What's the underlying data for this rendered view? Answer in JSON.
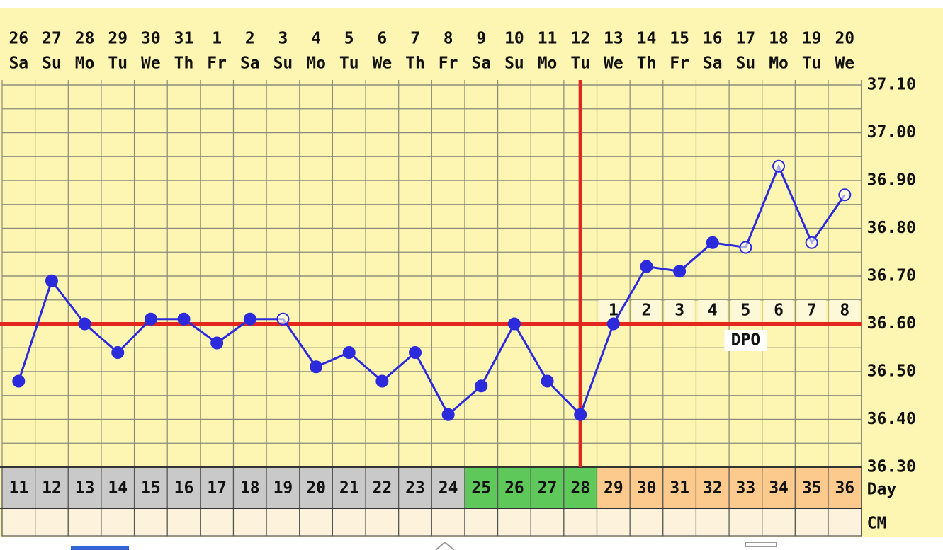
{
  "chart_data": {
    "type": "line",
    "categories": [
      "26",
      "27",
      "28",
      "29",
      "30",
      "31",
      "1",
      "2",
      "3",
      "4",
      "5",
      "6",
      "7",
      "8",
      "9",
      "10",
      "11",
      "12",
      "13",
      "14",
      "15",
      "16",
      "17",
      "18",
      "19",
      "20"
    ],
    "weekdays": [
      "Sa",
      "Su",
      "Mo",
      "Tu",
      "We",
      "Th",
      "Fr",
      "Sa",
      "Su",
      "Mo",
      "Tu",
      "We",
      "Th",
      "Fr",
      "Sa",
      "Su",
      "Mo",
      "Tu",
      "We",
      "Th",
      "Fr",
      "Sa",
      "Su",
      "Mo",
      "Tu",
      "We"
    ],
    "series": [
      {
        "color": "#2b2bdc",
        "values": [
          36.48,
          36.69,
          36.6,
          36.54,
          36.61,
          36.61,
          36.56,
          36.61,
          36.61,
          36.51,
          36.54,
          36.48,
          36.54,
          36.41,
          36.47,
          36.6,
          36.48,
          36.41,
          36.6,
          36.72,
          36.71,
          36.77,
          36.76,
          36.93,
          36.77,
          36.87
        ],
        "markers": [
          "filled",
          "filled",
          "filled",
          "filled",
          "filled",
          "filled",
          "filled",
          "filled",
          "open",
          "filled",
          "filled",
          "filled",
          "filled",
          "filled",
          "filled",
          "filled",
          "filled",
          "filled",
          "filled",
          "filled",
          "filled",
          "filled",
          "open",
          "open",
          "open",
          "open"
        ]
      }
    ],
    "ylim": [
      36.3,
      37.1
    ],
    "yticks": [
      {
        "value": 36.3,
        "label": "36.30"
      },
      {
        "value": 36.4,
        "label": "36.40"
      },
      {
        "value": 36.5,
        "label": "36.50"
      },
      {
        "value": 36.6,
        "label": "36.60"
      },
      {
        "value": 36.7,
        "label": "36.70"
      },
      {
        "value": 36.8,
        "label": "36.80"
      },
      {
        "value": 36.9,
        "label": "36.90"
      },
      {
        "value": 37.0,
        "label": "37.00"
      },
      {
        "value": 37.1,
        "label": "37.10"
      }
    ],
    "grid": true,
    "minor_grid_step": 0.05,
    "coverline": {
      "value": 36.6,
      "color": "#e3261e"
    },
    "ovulation_day": 28,
    "dpo": {
      "label": "DPO",
      "values": [
        1,
        2,
        3,
        4,
        5,
        6,
        7,
        8
      ],
      "start_day": 29
    },
    "day_row": {
      "label": "Day",
      "values": [
        11,
        12,
        13,
        14,
        15,
        16,
        17,
        18,
        19,
        20,
        21,
        22,
        23,
        24,
        25,
        26,
        27,
        28,
        29,
        30,
        31,
        32,
        33,
        34,
        35,
        36
      ],
      "colors": [
        "#c9c9c9",
        "#c9c9c9",
        "#c9c9c9",
        "#c9c9c9",
        "#c9c9c9",
        "#c9c9c9",
        "#c9c9c9",
        "#c9c9c9",
        "#c9c9c9",
        "#c9c9c9",
        "#c9c9c9",
        "#c9c9c9",
        "#c9c9c9",
        "#c9c9c9",
        "#5ec85a",
        "#5ec85a",
        "#5ec85a",
        "#5ec85a",
        "#fcca8c",
        "#fcca8c",
        "#fcca8c",
        "#fcca8c",
        "#fcca8c",
        "#fcca8c",
        "#fcca8c",
        "#fcca8c"
      ]
    },
    "cm_row": {
      "label": "CM"
    }
  }
}
